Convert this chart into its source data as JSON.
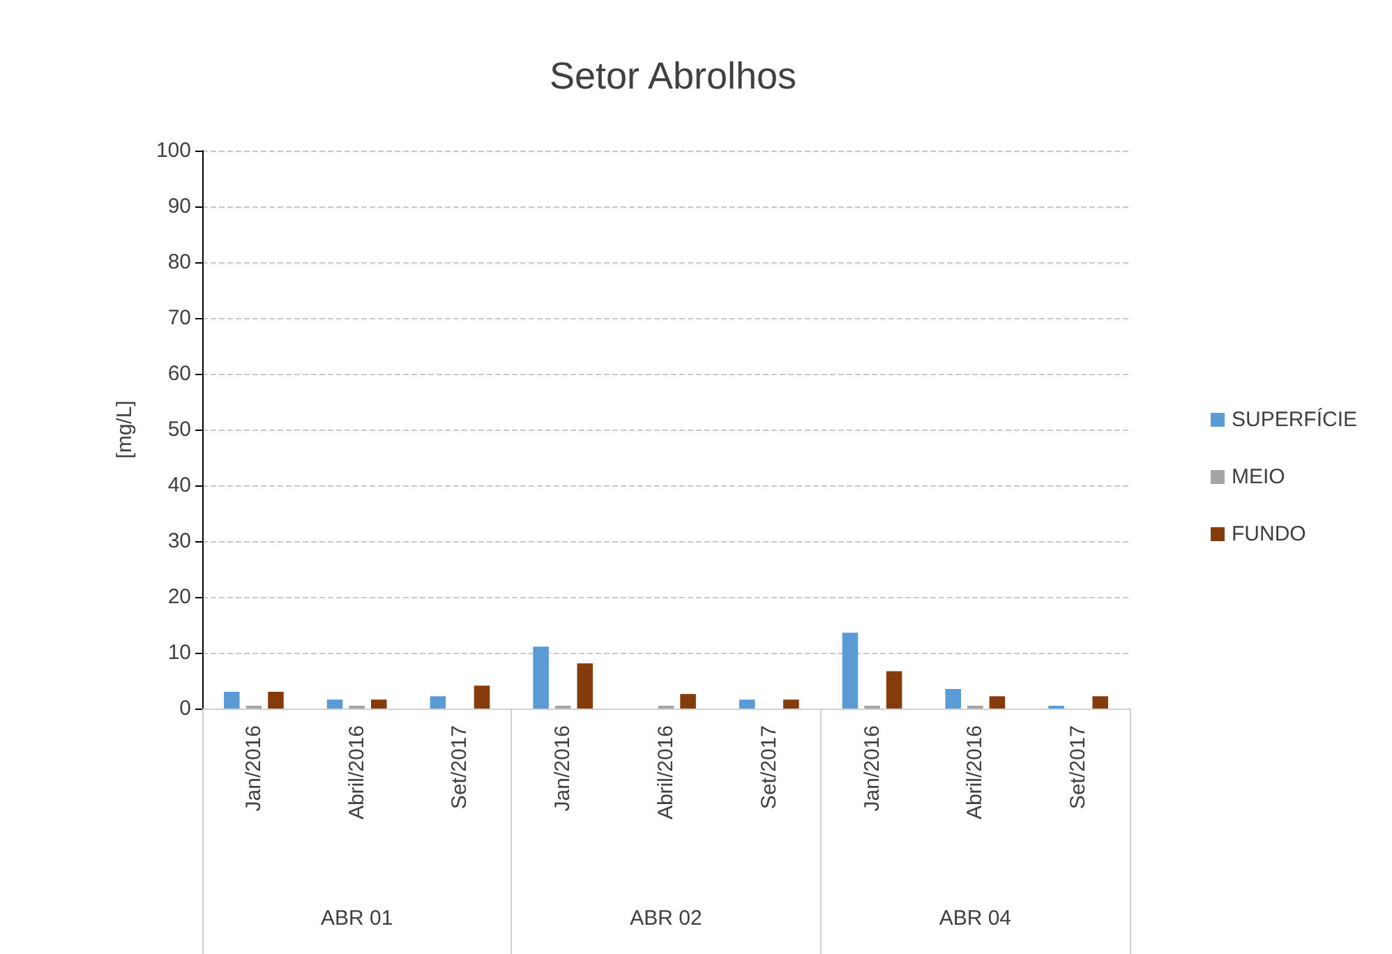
{
  "chart_data": {
    "type": "bar",
    "title": "Setor Abrolhos",
    "ylabel": "[mg/L]",
    "categories": [
      "Jan/2016",
      "Abril/2016",
      "Set/2017",
      "Jan/2016",
      "Abril/2016",
      "Set/2017",
      "Jan/2016",
      "Abril/2016",
      "Set/2017"
    ],
    "annotations": [
      "ABR 01",
      "ABR 02",
      "ABR 04"
    ],
    "series": [
      {
        "name": "SUPERFÍCIE",
        "color": "#5b9bd5",
        "values": [
          3.0,
          1.6,
          2.2,
          11.1,
          null,
          1.6,
          13.6,
          3.5,
          0.5
        ]
      },
      {
        "name": "MEIO",
        "color": "#a5a5a5",
        "values": [
          0.5,
          0.5,
          null,
          0.5,
          0.5,
          null,
          0.5,
          0.5,
          null
        ]
      },
      {
        "name": "FUNDO",
        "color": "#843c0c",
        "values": [
          3.0,
          1.6,
          4.1,
          8.1,
          2.6,
          1.6,
          6.7,
          2.2,
          2.2
        ]
      }
    ],
    "ylim": [
      0,
      100
    ],
    "yticks": [
      0,
      10,
      20,
      30,
      40,
      50,
      60,
      70,
      80,
      90,
      100
    ],
    "grid": "y",
    "legend": "right"
  }
}
